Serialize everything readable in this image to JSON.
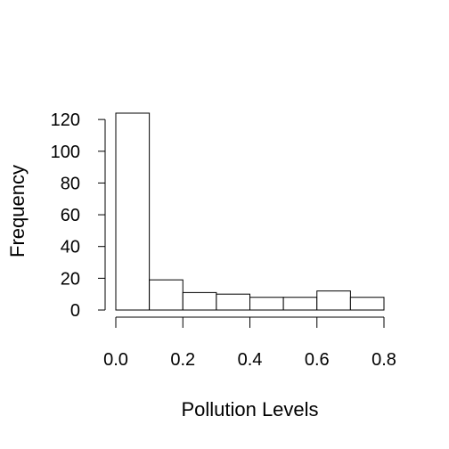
{
  "chart_data": {
    "type": "bar",
    "title": "",
    "xlabel": "Pollution Levels",
    "ylabel": "Frequency",
    "bins": [
      {
        "x0": 0.0,
        "x1": 0.1,
        "count": 124
      },
      {
        "x0": 0.1,
        "x1": 0.2,
        "count": 19
      },
      {
        "x0": 0.2,
        "x1": 0.3,
        "count": 11
      },
      {
        "x0": 0.3,
        "x1": 0.4,
        "count": 10
      },
      {
        "x0": 0.4,
        "x1": 0.5,
        "count": 8
      },
      {
        "x0": 0.5,
        "x1": 0.6,
        "count": 8
      },
      {
        "x0": 0.6,
        "x1": 0.7,
        "count": 12
      },
      {
        "x0": 0.7,
        "x1": 0.8,
        "count": 8
      }
    ],
    "xlim": [
      0.0,
      0.8
    ],
    "ylim": [
      0,
      124
    ],
    "x_ticks": [
      0.0,
      0.2,
      0.4,
      0.6,
      0.8
    ],
    "x_tick_labels": [
      "0.0",
      "0.2",
      "0.4",
      "0.6",
      "0.8"
    ],
    "y_ticks": [
      0,
      20,
      40,
      60,
      80,
      100,
      120
    ],
    "y_tick_labels": [
      "0",
      "20",
      "40",
      "60",
      "80",
      "100",
      "120"
    ],
    "grid": false,
    "legend": "none",
    "bar_fill": "#ffffff",
    "bar_stroke": "#000000"
  }
}
